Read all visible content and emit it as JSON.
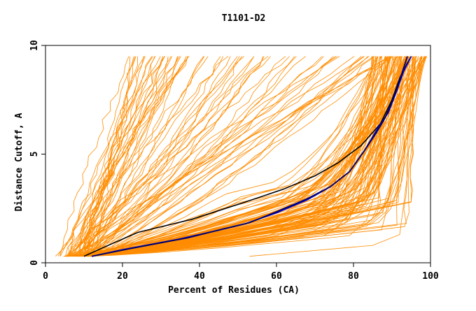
{
  "chart_data": {
    "type": "line",
    "title": "T1101-D2",
    "xlabel": "Percent of Residues (CA)",
    "ylabel": "Distance Cutoff, A",
    "xlim": [
      0,
      100
    ],
    "ylim": [
      0,
      10
    ],
    "x_ticks": [
      "0",
      "20",
      "40",
      "60",
      "80",
      "100"
    ],
    "y_ticks": [
      "0",
      "5",
      "10"
    ],
    "grid": false,
    "legend": "none",
    "colors": {
      "models": "#ff8c00",
      "black_curve": "#000000",
      "blue_curve": "#0000cc",
      "navy_curve": "#000066"
    },
    "series": [
      {
        "color": "#000000",
        "x": [
          10,
          15,
          24,
          38,
          52,
          62,
          70,
          76,
          82,
          87,
          90,
          92,
          94,
          95
        ],
        "y": [
          0.3,
          0.7,
          1.4,
          2.0,
          2.8,
          3.4,
          4.0,
          4.6,
          5.4,
          6.4,
          7.5,
          8.5,
          9.2,
          9.5
        ]
      },
      {
        "color": "#0000cc",
        "x": [
          12,
          20,
          35,
          45,
          52,
          60,
          68,
          74,
          79,
          83,
          86,
          89,
          91,
          93,
          95
        ],
        "y": [
          0.3,
          0.6,
          1.1,
          1.5,
          1.8,
          2.3,
          2.9,
          3.5,
          4.2,
          5.2,
          6.1,
          6.9,
          7.8,
          8.8,
          9.5
        ]
      },
      {
        "color": "#000066",
        "x": [
          12,
          22,
          37,
          46,
          53,
          60,
          68,
          74,
          79,
          83,
          86,
          88,
          90,
          92,
          94
        ],
        "y": [
          0.3,
          0.65,
          1.15,
          1.55,
          1.85,
          2.35,
          2.95,
          3.5,
          4.2,
          5.2,
          6.0,
          6.6,
          7.4,
          8.4,
          9.5
        ]
      }
    ],
    "model_families": {
      "steep_left": {
        "count": 30,
        "x_start": [
          3,
          12
        ],
        "x_end": [
          22,
          38
        ]
      },
      "middle": {
        "count": 40,
        "x_start": [
          5,
          14
        ],
        "x_end": [
          40,
          92
        ],
        "curvature": [
          0.7,
          1.2
        ]
      },
      "right_bundle": {
        "count": 110,
        "x_start": [
          5,
          12
        ],
        "x_mid": [
          45,
          95
        ],
        "x_end": [
          85,
          99
        ],
        "y_knee": [
          1.2,
          3.2
        ]
      },
      "outlier": {
        "x": [
          53,
          85,
          92,
          94,
          95.5
        ],
        "y": [
          0.3,
          0.8,
          1.3,
          4.0,
          9.5
        ]
      }
    }
  }
}
